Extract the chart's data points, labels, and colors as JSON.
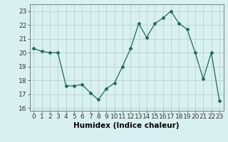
{
  "x": [
    0,
    1,
    2,
    3,
    4,
    5,
    6,
    7,
    8,
    9,
    10,
    11,
    12,
    13,
    14,
    15,
    16,
    17,
    18,
    19,
    20,
    21,
    22,
    23
  ],
  "y": [
    20.3,
    20.1,
    20.0,
    20.0,
    17.6,
    17.6,
    17.7,
    17.1,
    16.6,
    17.4,
    17.8,
    19.0,
    20.3,
    22.1,
    21.1,
    22.1,
    22.5,
    23.0,
    22.1,
    21.7,
    20.0,
    18.1,
    20.0,
    16.5
  ],
  "line_color": "#1a6b5a",
  "marker": "D",
  "marker_size": 2.5,
  "bg_color": "#d9f0f0",
  "grid_color": "#b0cece",
  "xlabel": "Humidex (Indice chaleur)",
  "xlim": [
    -0.5,
    23.5
  ],
  "ylim": [
    15.8,
    23.5
  ],
  "yticks": [
    16,
    17,
    18,
    19,
    20,
    21,
    22,
    23
  ],
  "xticks": [
    0,
    1,
    2,
    3,
    4,
    5,
    6,
    7,
    8,
    9,
    10,
    11,
    12,
    13,
    14,
    15,
    16,
    17,
    18,
    19,
    20,
    21,
    22,
    23
  ],
  "tick_fontsize": 6.5,
  "label_fontsize": 7.5
}
